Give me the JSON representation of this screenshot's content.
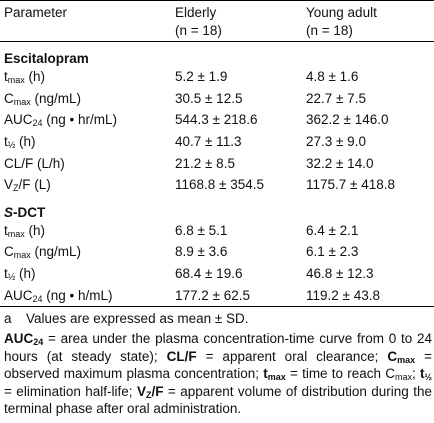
{
  "header": {
    "parameter": "Parameter",
    "elderly": "Elderly",
    "elderly_n": "(n = 18)",
    "young": "Young adult",
    "young_n": "(n = 18)"
  },
  "sections": [
    {
      "title": [
        "Escitalopram"
      ],
      "rows": [
        {
          "param": [
            "t",
            "max",
            " (h)"
          ],
          "elderly": "5.2 ± 1.9",
          "young": "4.8 ± 1.6"
        },
        {
          "param": [
            "C",
            "max",
            " (ng/mL)"
          ],
          "elderly": "30.5 ± 12.5",
          "young": "22.7 ± 7.5"
        },
        {
          "param": [
            "AUC",
            "24",
            " (ng • hr/mL)"
          ],
          "elderly": "544.3 ± 218.6",
          "young": "362.2 ± 146.0"
        },
        {
          "param": [
            "t",
            "½",
            " (h)"
          ],
          "elderly": "40.7 ± 11.3",
          "young": "27.3 ± 9.0"
        },
        {
          "param": [
            "CL/F (L/h)"
          ],
          "elderly": "21.2 ± 8.5",
          "young": "32.2 ± 14.0"
        },
        {
          "param": [
            "V",
            "Z",
            "/F (L)"
          ],
          "elderly": "1168.8 ± 354.5",
          "young": "1175.7 ± 418.8"
        }
      ]
    },
    {
      "title": [
        "S",
        "-DCT"
      ],
      "rows": [
        {
          "param": [
            "t",
            "max",
            " (h)"
          ],
          "elderly": "6.8 ± 5.1",
          "young": "6.4 ± 2.1"
        },
        {
          "param": [
            "C",
            "max",
            " (ng/mL)"
          ],
          "elderly": "8.9 ± 3.6",
          "young": "6.1 ± 2.3"
        },
        {
          "param": [
            "t",
            "½",
            " (h)"
          ],
          "elderly": "68.4 ± 19.6",
          "young": "46.8 ± 12.3"
        },
        {
          "param": [
            "AUC",
            "24",
            " (ng • h/mL)"
          ],
          "elderly": "177.2 ± 62.5",
          "young": "119.2 ± 43.8"
        }
      ]
    }
  ],
  "footnote_a": {
    "marker": "a",
    "text": "Values are expressed as mean ± SD."
  },
  "abbreviations": [
    "AUC",
    "24",
    " = area under the plasma concentration-time curve from 0 to 24 hours (at steady state); ",
    "CL/F",
    " = apparent oral clearance; ",
    "C",
    "max",
    " = observed maximum plasma concentration; ",
    "t",
    "max",
    " = time to reach C",
    "max",
    "; ",
    "t",
    "½",
    " = elimination half-life; ",
    "V",
    "Z",
    "/F",
    " = apparent volume of distribution during the terminal phase after oral administration."
  ]
}
